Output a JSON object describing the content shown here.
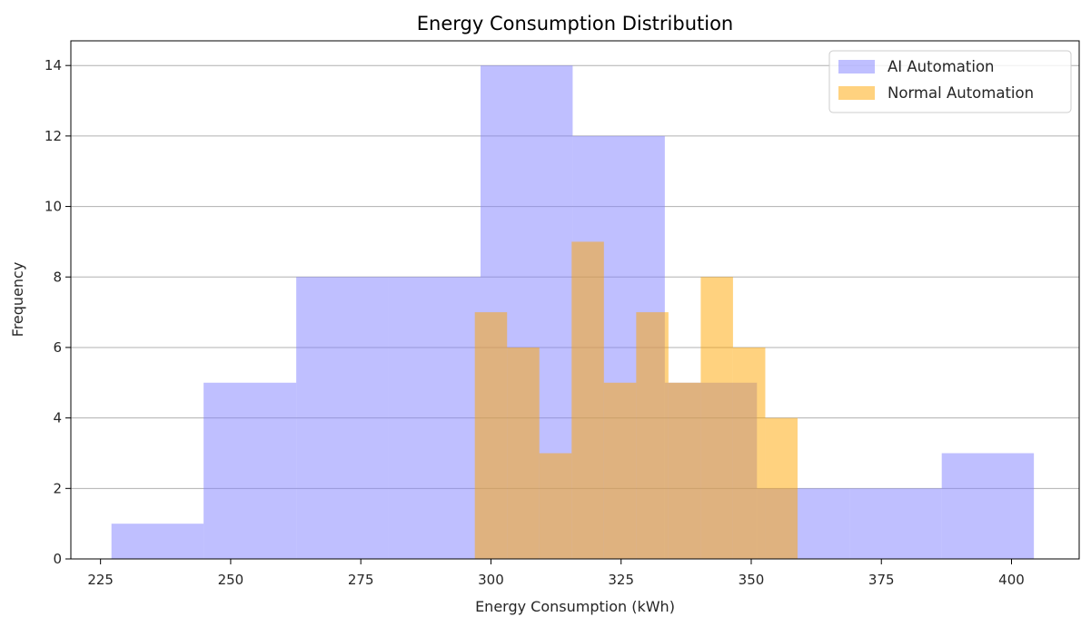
{
  "chart_data": {
    "type": "bar",
    "title": "Energy Consumption Distribution",
    "xlabel": "Energy Consumption (kWh)",
    "ylabel": "Frequency",
    "xlim": [
      219.3,
      413.0
    ],
    "ylim": [
      0,
      14.7
    ],
    "xticks": [
      225,
      250,
      275,
      300,
      325,
      350,
      375,
      400
    ],
    "yticks": [
      0,
      2,
      4,
      6,
      8,
      10,
      12,
      14
    ],
    "grid": "y",
    "legend_position": "top-right",
    "series": [
      {
        "name": "AI Automation",
        "color": "#7f7fff",
        "bins": [
          {
            "x0": 227.1,
            "x1": 244.8,
            "count": 1
          },
          {
            "x0": 244.8,
            "x1": 262.6,
            "count": 5
          },
          {
            "x0": 262.6,
            "x1": 280.3,
            "count": 8
          },
          {
            "x0": 280.3,
            "x1": 298.0,
            "count": 8
          },
          {
            "x0": 298.0,
            "x1": 315.7,
            "count": 14
          },
          {
            "x0": 315.7,
            "x1": 333.4,
            "count": 12
          },
          {
            "x0": 333.4,
            "x1": 351.1,
            "count": 5
          },
          {
            "x0": 351.1,
            "x1": 368.9,
            "count": 2
          },
          {
            "x0": 368.9,
            "x1": 386.6,
            "count": 2
          },
          {
            "x0": 386.6,
            "x1": 404.3,
            "count": 3
          }
        ]
      },
      {
        "name": "Normal Automation",
        "color": "#ffa500",
        "bins": [
          {
            "x0": 296.9,
            "x1": 303.1,
            "count": 7
          },
          {
            "x0": 303.1,
            "x1": 309.3,
            "count": 6
          },
          {
            "x0": 309.3,
            "x1": 315.5,
            "count": 3
          },
          {
            "x0": 315.5,
            "x1": 321.7,
            "count": 9
          },
          {
            "x0": 321.7,
            "x1": 327.9,
            "count": 5
          },
          {
            "x0": 327.9,
            "x1": 334.1,
            "count": 7
          },
          {
            "x0": 334.1,
            "x1": 340.3,
            "count": 5
          },
          {
            "x0": 340.3,
            "x1": 346.5,
            "count": 8
          },
          {
            "x0": 346.5,
            "x1": 352.7,
            "count": 6
          },
          {
            "x0": 352.7,
            "x1": 358.9,
            "count": 4
          }
        ]
      }
    ]
  }
}
